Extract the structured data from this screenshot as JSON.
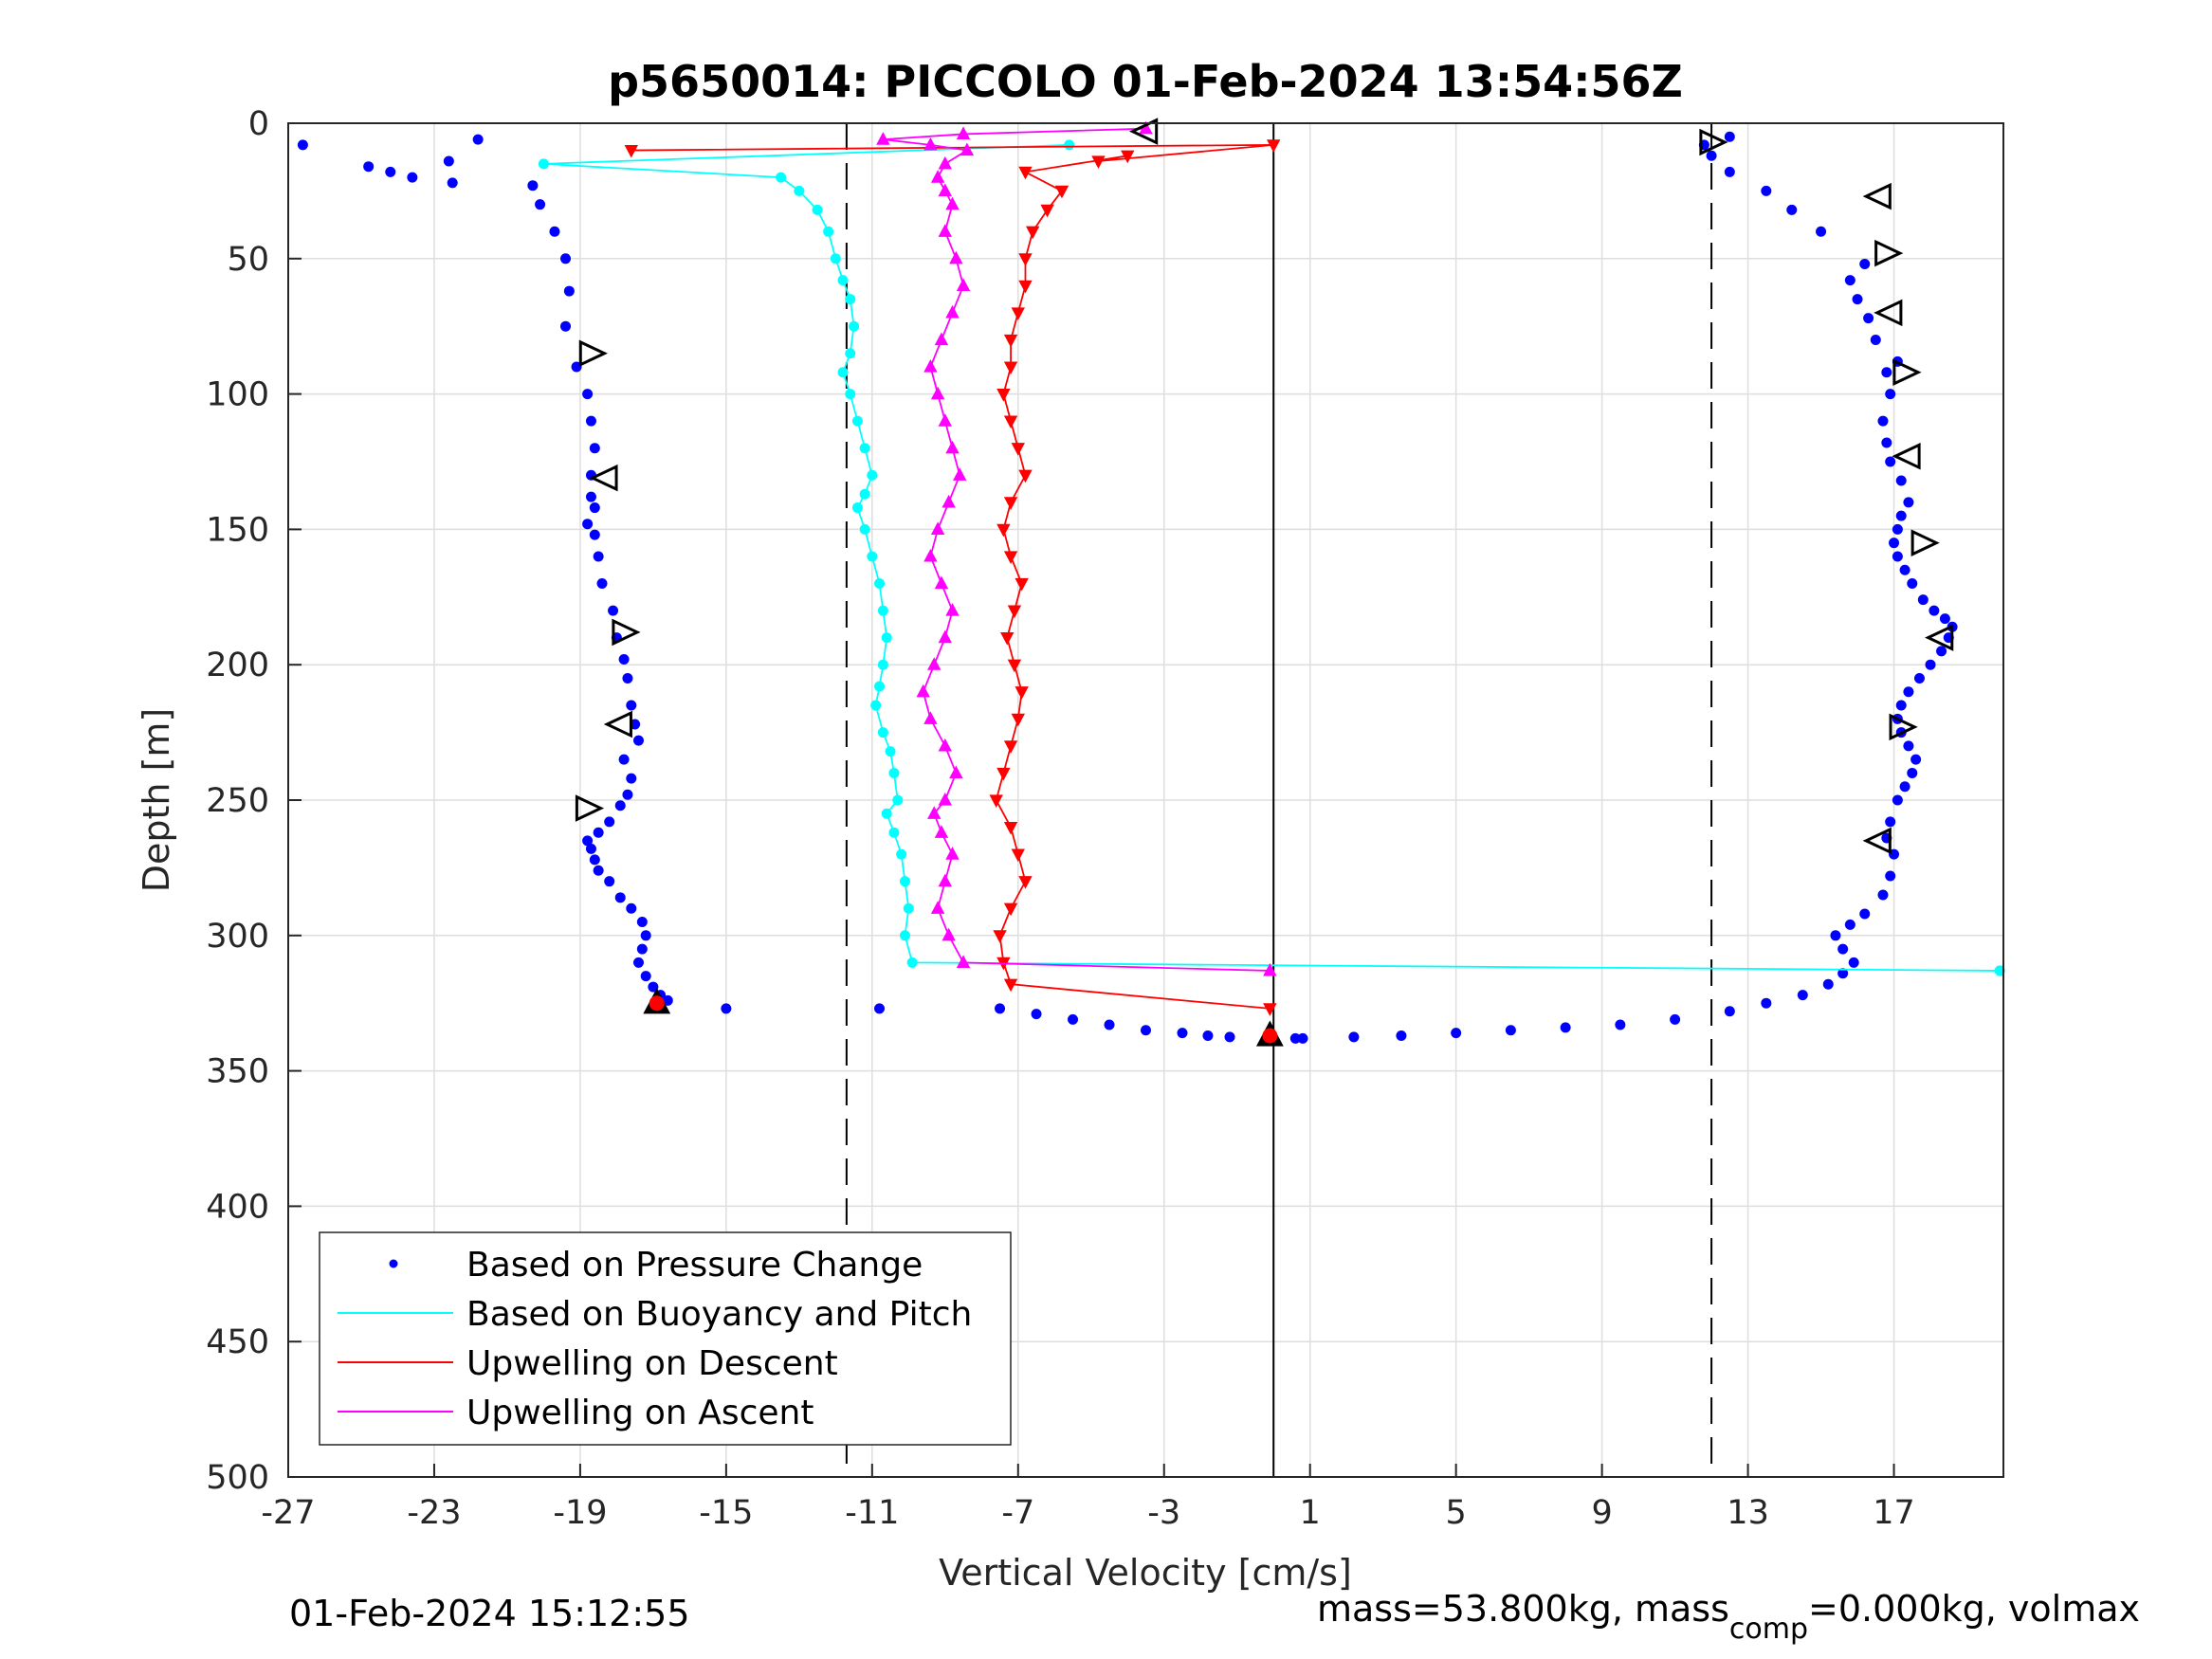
{
  "chart_data": {
    "type": "scatter",
    "title": "p5650014: PICCOLO 01-Feb-2024 13:54:56Z",
    "xlabel": "Vertical Velocity [cm/s]",
    "ylabel": "Depth [m]",
    "xlim": [
      -27,
      20
    ],
    "ylim": [
      0,
      500
    ],
    "y_reversed": true,
    "grid": true,
    "x_ticks": [
      -27,
      -23,
      -19,
      -15,
      -11,
      -7,
      -3,
      1,
      5,
      9,
      13,
      17
    ],
    "x_tick_labels": [
      "-27",
      "-23",
      "-19",
      "-15",
      "-11",
      "-7",
      "-3",
      "1",
      "5",
      "9",
      "13",
      "17"
    ],
    "y_ticks": [
      0,
      50,
      100,
      150,
      200,
      250,
      300,
      350,
      400,
      450,
      500
    ],
    "y_tick_labels": [
      "0",
      "50",
      "100",
      "150",
      "200",
      "250",
      "300",
      "350",
      "400",
      "450",
      "500"
    ],
    "reference_lines": {
      "solid_x": 0,
      "dashed_x": [
        -11.7,
        12
      ]
    },
    "legend": {
      "placement": "bottom-left",
      "entries": [
        {
          "label": "Based on Pressure Change",
          "color": "#0000ff",
          "style": "dot"
        },
        {
          "label": "Based on Buoyancy and Pitch",
          "color": "#00ffff",
          "style": "line"
        },
        {
          "label": "Upwelling on Descent",
          "color": "#ff0000",
          "style": "line"
        },
        {
          "label": "Upwelling on Ascent",
          "color": "#ff00ff",
          "style": "line"
        }
      ]
    },
    "series": [
      {
        "name": "Based on Pressure Change (descent)",
        "color": "#0000ff",
        "style": "dot",
        "x": [
          -26.6,
          -24.8,
          -24.2,
          -23.6,
          -22.6,
          -22.5,
          -21.8,
          -20.3,
          -20.1,
          -19.7,
          -19.4,
          -19.3,
          -19.4,
          -19.1,
          -18.8,
          -18.7,
          -18.6,
          -18.7,
          -18.7,
          -18.6,
          -18.8,
          -18.6,
          -18.5,
          -18.4,
          -18.1,
          -18.0,
          -17.8,
          -17.7,
          -17.6,
          -17.5,
          -17.4,
          -17.8,
          -17.6,
          -17.7,
          -17.9,
          -18.2,
          -18.5,
          -18.8,
          -18.7,
          -18.6,
          -18.5,
          -18.2,
          -17.9,
          -17.6,
          -17.3,
          -17.2,
          -17.3,
          -17.4,
          -17.2,
          -17.0,
          -16.8,
          -16.6,
          -15.0
        ],
        "y": [
          8,
          16,
          18,
          20,
          14,
          22,
          6,
          23,
          30,
          40,
          50,
          62,
          75,
          90,
          100,
          110,
          120,
          130,
          138,
          142,
          148,
          152,
          160,
          170,
          180,
          190,
          198,
          205,
          215,
          222,
          228,
          235,
          242,
          248,
          252,
          258,
          262,
          265,
          268,
          272,
          276,
          280,
          286,
          290,
          295,
          300,
          305,
          310,
          315,
          319,
          322,
          324,
          327
        ]
      },
      {
        "name": "Based on Pressure Change (bottom)",
        "color": "#0000ff",
        "style": "dot",
        "x": [
          -10.8,
          -7.5,
          -6.5,
          -5.5,
          -4.5,
          -3.5,
          -2.5,
          -1.8,
          -1.2,
          0.6,
          0.8,
          2.2,
          3.5,
          5,
          6.5,
          8,
          9.5,
          11,
          12.5,
          13.5,
          14.5,
          15.2,
          15.6,
          15.9
        ],
        "y": [
          327,
          327,
          329,
          331,
          333,
          335,
          336,
          337,
          337.5,
          338,
          338,
          337.5,
          337,
          336,
          335,
          334,
          333,
          331,
          328,
          325,
          322,
          318,
          314,
          310
        ]
      },
      {
        "name": "Based on Pressure Change (ascent)",
        "color": "#0000ff",
        "style": "dot",
        "x": [
          15.6,
          15.4,
          15.8,
          16.2,
          16.7,
          16.9,
          17.0,
          16.8,
          16.9,
          17.1,
          17.3,
          17.5,
          17.6,
          17.4,
          17.2,
          17.1,
          17.2,
          17.4,
          17.7,
          18.0,
          18.3,
          18.5,
          18.6,
          18.4,
          18.1,
          17.8,
          17.5,
          17.3,
          17.1,
          17.0,
          17.1,
          17.2,
          17.4,
          17.2,
          16.9,
          16.8,
          16.7,
          16.9,
          16.8,
          17.1,
          16.5,
          16.3,
          16.0,
          15.8,
          16.2,
          15.0,
          14.2,
          13.5,
          12.5,
          12.0,
          12.5,
          11.8
        ],
        "y": [
          305,
          300,
          296,
          292,
          285,
          278,
          270,
          264,
          258,
          250,
          245,
          240,
          235,
          230,
          225,
          220,
          215,
          210,
          205,
          200,
          195,
          190,
          186,
          183,
          180,
          176,
          170,
          165,
          160,
          155,
          150,
          145,
          140,
          132,
          125,
          118,
          110,
          100,
          92,
          88,
          80,
          72,
          65,
          58,
          52,
          40,
          32,
          25,
          18,
          12,
          5,
          8
        ]
      },
      {
        "name": "Based on Buoyancy and Pitch",
        "color": "#00ffff",
        "style": "line-marker",
        "x": [
          -5.6,
          -20.0,
          -13.5,
          -13.0,
          -12.5,
          -12.2,
          -12.0,
          -11.8,
          -11.6,
          -11.5,
          -11.6,
          -11.8,
          -11.6,
          -11.4,
          -11.2,
          -11.0,
          -11.2,
          -11.4,
          -11.2,
          -11.0,
          -10.8,
          -10.7,
          -10.6,
          -10.7,
          -10.8,
          -10.9,
          -10.7,
          -10.5,
          -10.4,
          -10.3,
          -10.6,
          -10.4,
          -10.2,
          -10.1,
          -10.0,
          -10.1,
          -9.9,
          19.9
        ],
        "y": [
          8,
          15,
          20,
          25,
          32,
          40,
          50,
          58,
          65,
          75,
          85,
          92,
          100,
          110,
          120,
          130,
          137,
          142,
          150,
          160,
          170,
          180,
          190,
          200,
          208,
          215,
          225,
          232,
          240,
          250,
          255,
          262,
          270,
          280,
          290,
          300,
          310,
          313
        ]
      },
      {
        "name": "Upwelling on Descent",
        "color": "#ff0000",
        "style": "line-marker",
        "x": [
          -17.6,
          0.0,
          -4.8,
          -4.0,
          -6.8,
          -5.8,
          -6.2,
          -6.6,
          -6.8,
          -6.8,
          -7.0,
          -7.2,
          -7.2,
          -7.4,
          -7.2,
          -7.0,
          -6.8,
          -7.2,
          -7.4,
          -7.2,
          -6.9,
          -7.1,
          -7.3,
          -7.1,
          -6.9,
          -7.0,
          -7.2,
          -7.4,
          -7.6,
          -7.2,
          -7.0,
          -6.8,
          -7.2,
          -7.5,
          -7.4,
          -7.2,
          -0.1
        ],
        "y": [
          10,
          8,
          14,
          12,
          18,
          25,
          32,
          40,
          50,
          60,
          70,
          80,
          90,
          100,
          110,
          120,
          130,
          140,
          150,
          160,
          170,
          180,
          190,
          200,
          210,
          220,
          230,
          240,
          250,
          260,
          270,
          280,
          290,
          300,
          310,
          318,
          327
        ]
      },
      {
        "name": "Upwelling on Ascent",
        "color": "#ff00ff",
        "style": "line-marker",
        "x": [
          -0.1,
          -8.5,
          -8.9,
          -9.2,
          -9.0,
          -8.8,
          -9.1,
          -9.3,
          -9.0,
          -8.7,
          -9.0,
          -9.4,
          -9.6,
          -9.3,
          -9.0,
          -8.8,
          -9.1,
          -9.4,
          -9.2,
          -8.9,
          -8.6,
          -8.8,
          -9.0,
          -9.2,
          -9.4,
          -9.1,
          -8.8,
          -8.5,
          -8.7,
          -9.0,
          -8.8,
          -9.0,
          -9.2,
          -9.0,
          -8.4,
          -9.4,
          -10.7,
          -8.5,
          -3.5
        ],
        "y": [
          313,
          310,
          300,
          290,
          280,
          270,
          262,
          255,
          250,
          240,
          230,
          220,
          210,
          200,
          190,
          180,
          170,
          160,
          150,
          140,
          130,
          120,
          110,
          100,
          90,
          80,
          70,
          60,
          50,
          40,
          30,
          25,
          20,
          15,
          10,
          8,
          6,
          4,
          2
        ]
      },
      {
        "name": "Markers (open triangles)",
        "color": "#000000",
        "style": "open-triangle",
        "x": [
          -3.5,
          12.0,
          16.6,
          16.8,
          16.9,
          17.3,
          17.4,
          17.8,
          18.3,
          17.2,
          16.6,
          -18.7,
          -18.3,
          -17.8,
          -17.9,
          -18.8
        ],
        "y": [
          3,
          7,
          27,
          48,
          70,
          92,
          123,
          155,
          190,
          223,
          265,
          85,
          131,
          188,
          222,
          253
        ]
      },
      {
        "name": "Turning point markers (red filled)",
        "color": "#ff0000",
        "style": "filled-triangle",
        "x": [
          -16.9,
          -0.1
        ],
        "y": [
          325,
          337
        ]
      }
    ]
  },
  "footer": {
    "timestamp": "01-Feb-2024 15:12:55",
    "mass_prefix": "mass=53.800kg, mass",
    "mass_subscript": "comp",
    "mass_suffix": "=0.000kg, volmax"
  }
}
